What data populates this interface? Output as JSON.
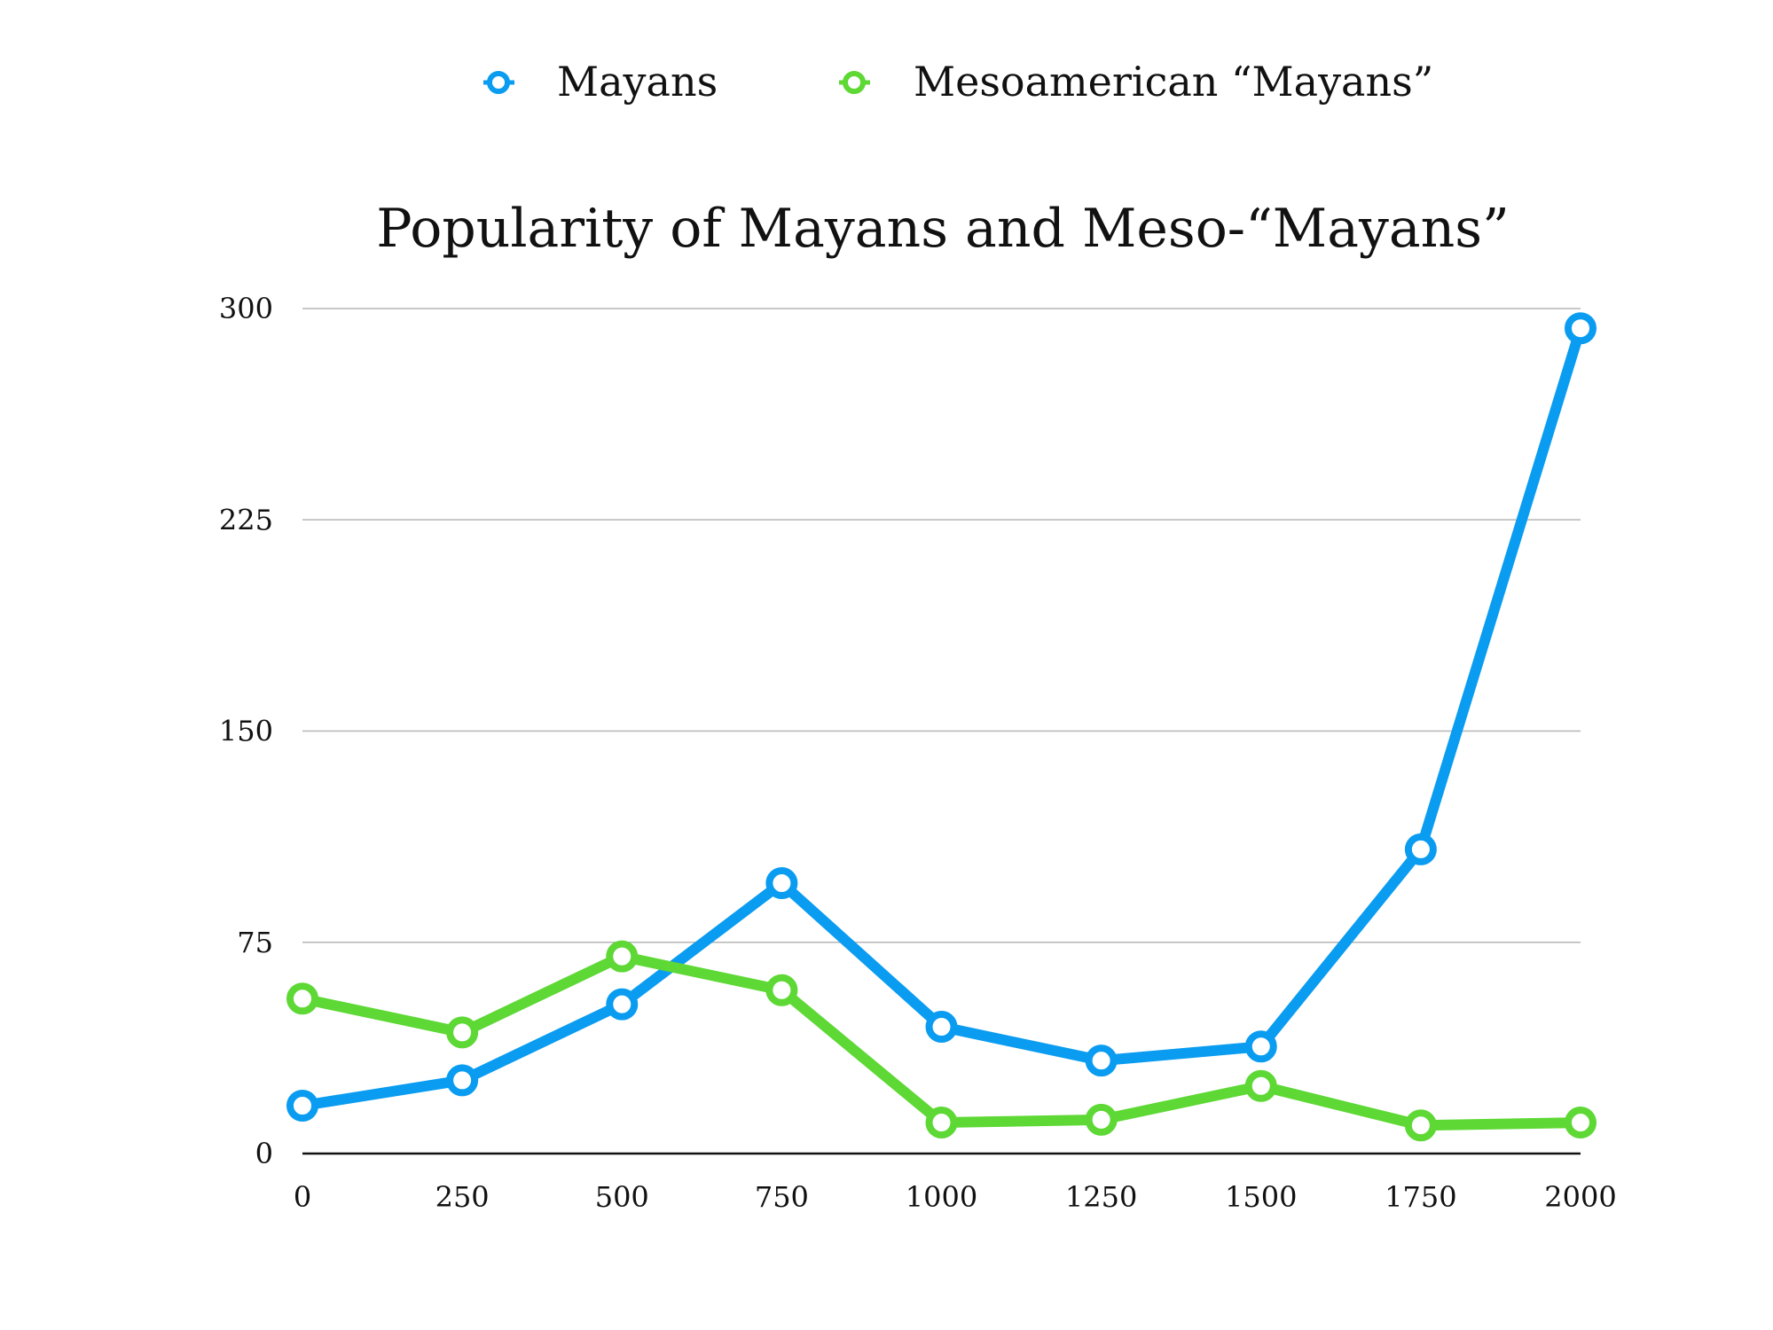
{
  "chart_data": {
    "type": "line",
    "title": "Popularity of Mayans and Meso-“Mayans”",
    "xlabel": "",
    "ylabel": "",
    "x": [
      0,
      250,
      500,
      750,
      1000,
      1250,
      1500,
      1750,
      2000
    ],
    "x_tick_labels": [
      "0",
      "250",
      "500",
      "750",
      "1000",
      "1250",
      "1500",
      "1750",
      "2000"
    ],
    "ylim": [
      0,
      300
    ],
    "y_ticks": [
      0,
      75,
      150,
      225,
      300
    ],
    "y_tick_labels": [
      "0",
      "75",
      "150",
      "225",
      "300"
    ],
    "grid": true,
    "legend_position": "top",
    "series": [
      {
        "name": "Mayans",
        "color": "#0A9CF0",
        "values": [
          17,
          26,
          53,
          96,
          45,
          33,
          38,
          108,
          293
        ]
      },
      {
        "name": "Mesoamerican “Mayans”",
        "color": "#5DD834",
        "values": [
          55,
          43,
          70,
          58,
          11,
          12,
          24,
          10,
          11
        ]
      }
    ]
  }
}
